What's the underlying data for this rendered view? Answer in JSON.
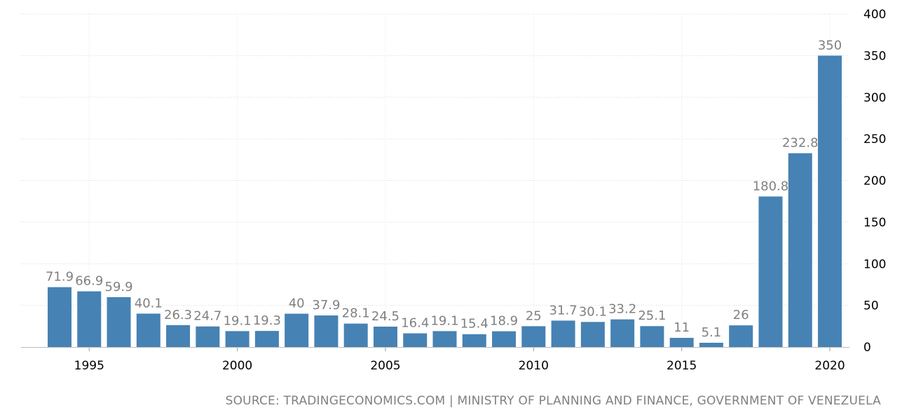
{
  "chart_data": {
    "type": "bar",
    "categories": [
      "1994",
      "1995",
      "1996",
      "1997",
      "1998",
      "1999",
      "2000",
      "2001",
      "2002",
      "2003",
      "2004",
      "2005",
      "2006",
      "2007",
      "2008",
      "2009",
      "2010",
      "2011",
      "2012",
      "2013",
      "2014",
      "2015",
      "2016",
      "2017",
      "2018",
      "2019",
      "2020"
    ],
    "values": [
      71.9,
      66.9,
      59.9,
      40.1,
      26.3,
      24.7,
      19.1,
      19.3,
      40,
      37.9,
      28.1,
      24.5,
      16.4,
      19.1,
      15.4,
      18.9,
      25,
      31.7,
      30.1,
      33.2,
      25.1,
      11,
      5.1,
      26,
      180.8,
      232.8,
      350
    ],
    "data_labels": [
      "71.9",
      "66.9",
      "59.9",
      "40.1",
      "26.3",
      "24.7",
      "19.1",
      "19.3",
      "40",
      "37.9",
      "28.1",
      "24.5",
      "16.4",
      "19.1",
      "15.4",
      "18.9",
      "25",
      "31.7",
      "30.1",
      "33.2",
      "25.1",
      "11",
      "5.1",
      "26",
      "180.8",
      "232.8",
      "350"
    ],
    "x_tick_labels": [
      "1995",
      "2000",
      "2005",
      "2010",
      "2015",
      "2020"
    ],
    "y_tick_labels": [
      "0",
      "50",
      "100",
      "150",
      "200",
      "250",
      "300",
      "350",
      "400"
    ],
    "ylim": [
      0,
      400
    ],
    "grid": true,
    "bar_color": "#4682b4",
    "label_color": "#808080",
    "title": "",
    "xlabel": "",
    "ylabel": ""
  },
  "source_text": "SOURCE: TRADINGECONOMICS.COM | MINISTRY OF PLANNING AND FINANCE, GOVERNMENT OF VENEZUELA"
}
